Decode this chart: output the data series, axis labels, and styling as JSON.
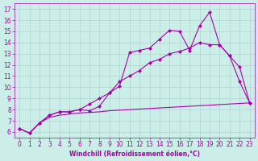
{
  "xlabel": "Windchill (Refroidissement éolien,°C)",
  "bg_color": "#cceee8",
  "grid_color": "#aacccc",
  "line_color": "#aa00aa",
  "xlim": [
    -0.5,
    23.5
  ],
  "ylim": [
    5.5,
    17.5
  ],
  "yticks": [
    6,
    7,
    8,
    9,
    10,
    11,
    12,
    13,
    14,
    15,
    16,
    17
  ],
  "xticks": [
    0,
    1,
    2,
    3,
    4,
    5,
    6,
    7,
    8,
    9,
    10,
    11,
    12,
    13,
    14,
    15,
    16,
    17,
    18,
    19,
    20,
    21,
    22,
    23
  ],
  "line1_x": [
    0,
    1,
    2,
    3,
    4,
    5,
    6,
    7,
    8,
    9,
    10,
    11,
    12,
    13,
    14,
    15,
    16,
    17,
    18,
    19,
    20,
    21,
    22,
    23
  ],
  "line1_y": [
    6.3,
    5.9,
    6.8,
    7.5,
    7.8,
    7.8,
    8.0,
    7.9,
    8.3,
    9.5,
    10.1,
    13.1,
    13.3,
    13.5,
    14.3,
    15.1,
    15.0,
    13.3,
    15.5,
    16.7,
    13.8,
    12.8,
    10.5,
    8.6
  ],
  "line2_x": [
    0,
    1,
    2,
    3,
    4,
    5,
    6,
    7,
    8,
    9,
    10,
    11,
    12,
    13,
    14,
    15,
    16,
    17,
    18,
    19,
    20,
    21,
    22,
    23
  ],
  "line2_y": [
    6.3,
    5.9,
    6.8,
    7.5,
    7.8,
    7.8,
    8.0,
    8.5,
    9.0,
    9.5,
    10.5,
    11.0,
    11.5,
    12.2,
    12.5,
    13.0,
    13.2,
    13.5,
    14.0,
    13.8,
    13.8,
    12.8,
    11.8,
    8.6
  ],
  "line3_x": [
    0,
    1,
    2,
    3,
    4,
    5,
    6,
    7,
    8,
    9,
    10,
    11,
    12,
    13,
    14,
    15,
    16,
    17,
    18,
    19,
    20,
    21,
    22,
    23
  ],
  "line3_y": [
    6.3,
    5.9,
    6.8,
    7.3,
    7.5,
    7.6,
    7.7,
    7.75,
    7.8,
    7.9,
    7.95,
    8.0,
    8.05,
    8.1,
    8.15,
    8.2,
    8.25,
    8.3,
    8.35,
    8.4,
    8.45,
    8.5,
    8.55,
    8.6
  ],
  "tick_fontsize": 5.5,
  "xlabel_fontsize": 5.5,
  "marker_size": 2.5,
  "linewidth": 0.8
}
